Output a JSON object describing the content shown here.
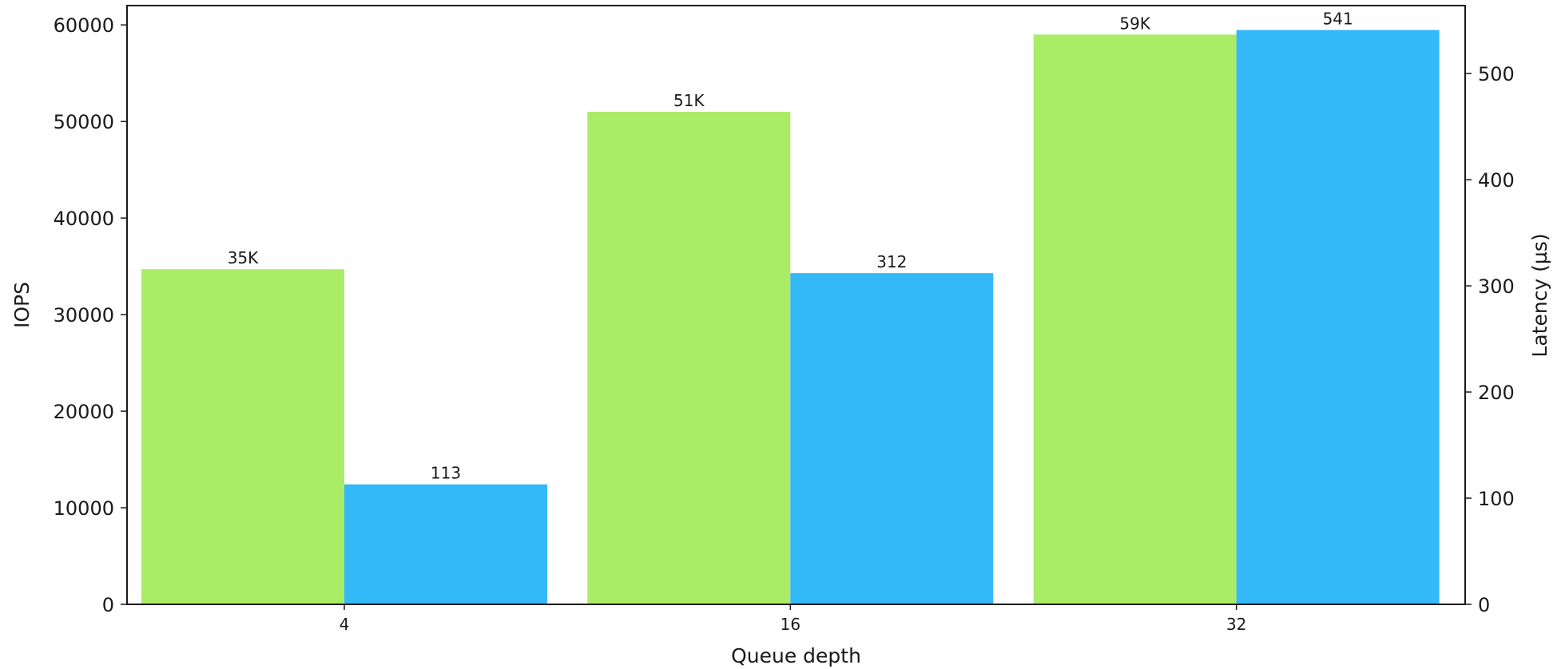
{
  "chart_data": {
    "type": "bar",
    "categories": [
      "4",
      "16",
      "32"
    ],
    "series": [
      {
        "values": [
          34700,
          51000,
          59000
        ],
        "labels": [
          "35K",
          "51K",
          "59K"
        ],
        "color": "#aaec66",
        "axis": "left"
      },
      {
        "values": [
          113,
          312,
          541
        ],
        "labels": [
          "113",
          "312",
          "541"
        ],
        "color": "#33b8f8",
        "axis": "right"
      }
    ],
    "xlabel": "Queue depth",
    "ylabel": "IOPS",
    "y2label": "Latency (µs)",
    "ylim": [
      0,
      62000
    ],
    "y2lim": [
      0,
      564
    ],
    "yticks": [
      0,
      10000,
      20000,
      30000,
      40000,
      50000,
      60000
    ],
    "y2ticks": [
      0,
      100,
      200,
      300,
      400,
      500
    ],
    "grid": false,
    "legend": "none"
  }
}
